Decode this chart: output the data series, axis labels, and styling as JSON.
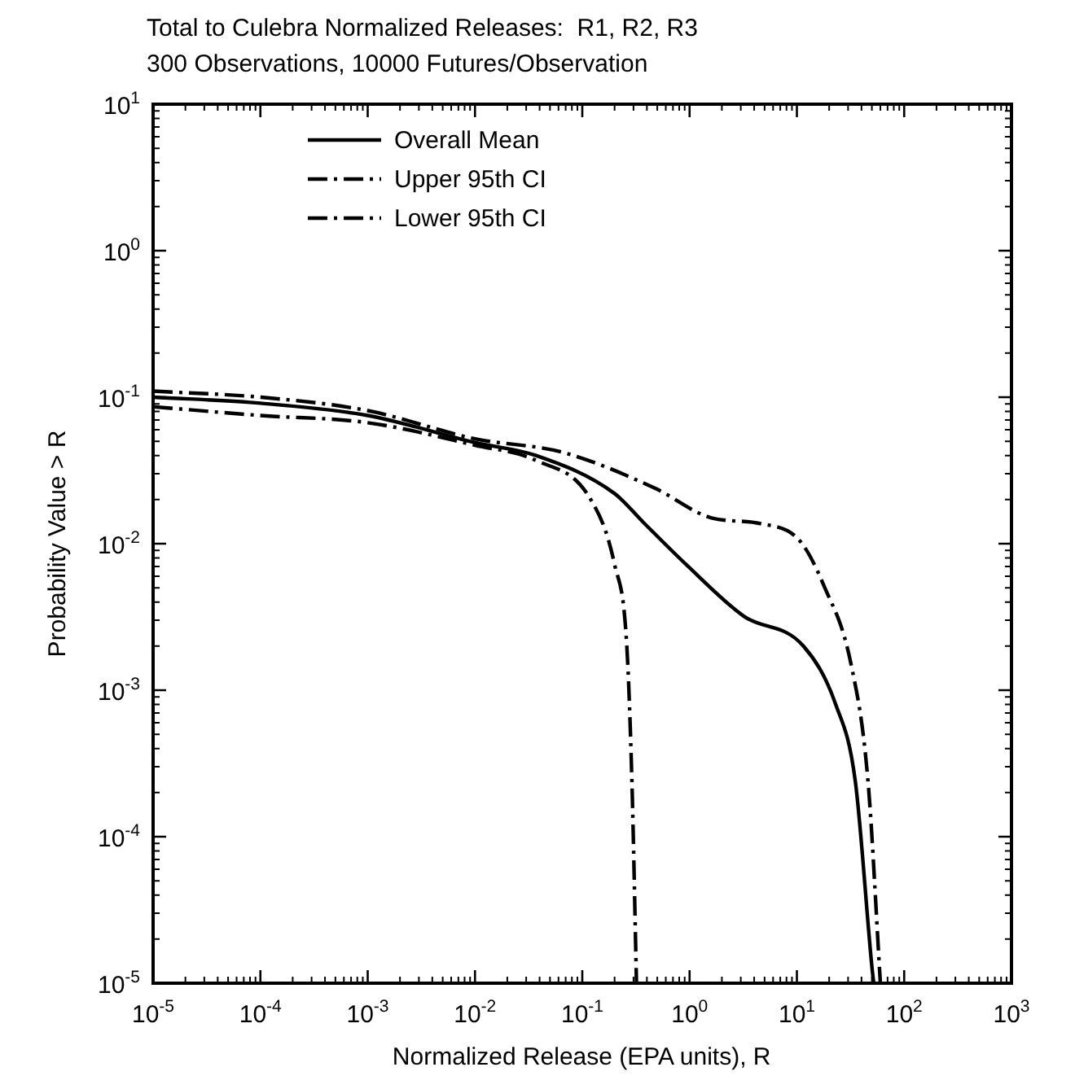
{
  "chart_data": {
    "type": "line",
    "title": "Total to Culebra Normalized Releases:  R1, R2, R3",
    "subtitle": "300 Observations, 10000 Futures/Observation",
    "xlabel": "Normalized Release (EPA units), R",
    "ylabel": "Probability Value > R",
    "log": "xy",
    "xlim": [
      1e-05,
      1000
    ],
    "ylim": [
      1e-05,
      10
    ],
    "xticks": [
      {
        "value": 1e-05,
        "label": "10$^{-5}$"
      },
      {
        "value": 0.0001,
        "label": "10$^{-4}$"
      },
      {
        "value": 0.001,
        "label": "10$^{-3}$"
      },
      {
        "value": 0.01,
        "label": "10$^{-2}$"
      },
      {
        "value": 0.1,
        "label": "10$^{-1}$"
      },
      {
        "value": 1,
        "label": "10$^{0}$"
      },
      {
        "value": 10,
        "label": "10$^{1}$"
      },
      {
        "value": 100,
        "label": "10$^{2}$"
      },
      {
        "value": 1000,
        "label": "10$^{3}$"
      }
    ],
    "yticks": [
      {
        "value": 1e-05,
        "label": "10$^{-5}$"
      },
      {
        "value": 0.0001,
        "label": "10$^{-4}$"
      },
      {
        "value": 0.001,
        "label": "10$^{-3}$"
      },
      {
        "value": 0.01,
        "label": "10$^{-2}$"
      },
      {
        "value": 0.1,
        "label": "10$^{-1}$"
      },
      {
        "value": 1,
        "label": "10$^{0}$"
      },
      {
        "value": 10,
        "label": "10$^{1}$"
      }
    ],
    "grid": false,
    "legend": "top left",
    "marker": "none",
    "series": [
      {
        "name": "Overall Mean",
        "color": "#000000",
        "line_style": "solid",
        "x": [
          1e-05,
          0.0001,
          0.001,
          0.01,
          0.037,
          0.2,
          0.37,
          0.93,
          3.2,
          11.5,
          23,
          35,
          50,
          52
        ],
        "values": [
          0.1,
          0.091,
          0.075,
          0.049,
          0.04,
          0.022,
          0.014,
          0.0072,
          0.0032,
          0.002,
          0.0008,
          0.00024,
          1.3e-05,
          1e-05
        ]
      },
      {
        "name": "Upper 95th CI",
        "color": "#000000",
        "line_style": "dashed",
        "x": [
          1e-05,
          0.0001,
          0.001,
          0.01,
          0.066,
          0.47,
          1.6,
          4.6,
          10.6,
          18,
          32,
          46,
          60
        ],
        "values": [
          0.11,
          0.1,
          0.081,
          0.052,
          0.042,
          0.024,
          0.015,
          0.0137,
          0.0105,
          0.0051,
          0.0015,
          0.00024,
          1e-05
        ]
      },
      {
        "name": "Lower 95th CI",
        "color": "#000000",
        "line_style": "dashed",
        "x": [
          1e-05,
          0.0001,
          0.001,
          0.01,
          0.037,
          0.12,
          0.2,
          0.26,
          0.29,
          0.32
        ],
        "values": [
          0.086,
          0.075,
          0.067,
          0.047,
          0.037,
          0.02,
          0.0072,
          0.002,
          0.00024,
          1e-05
        ]
      }
    ]
  }
}
